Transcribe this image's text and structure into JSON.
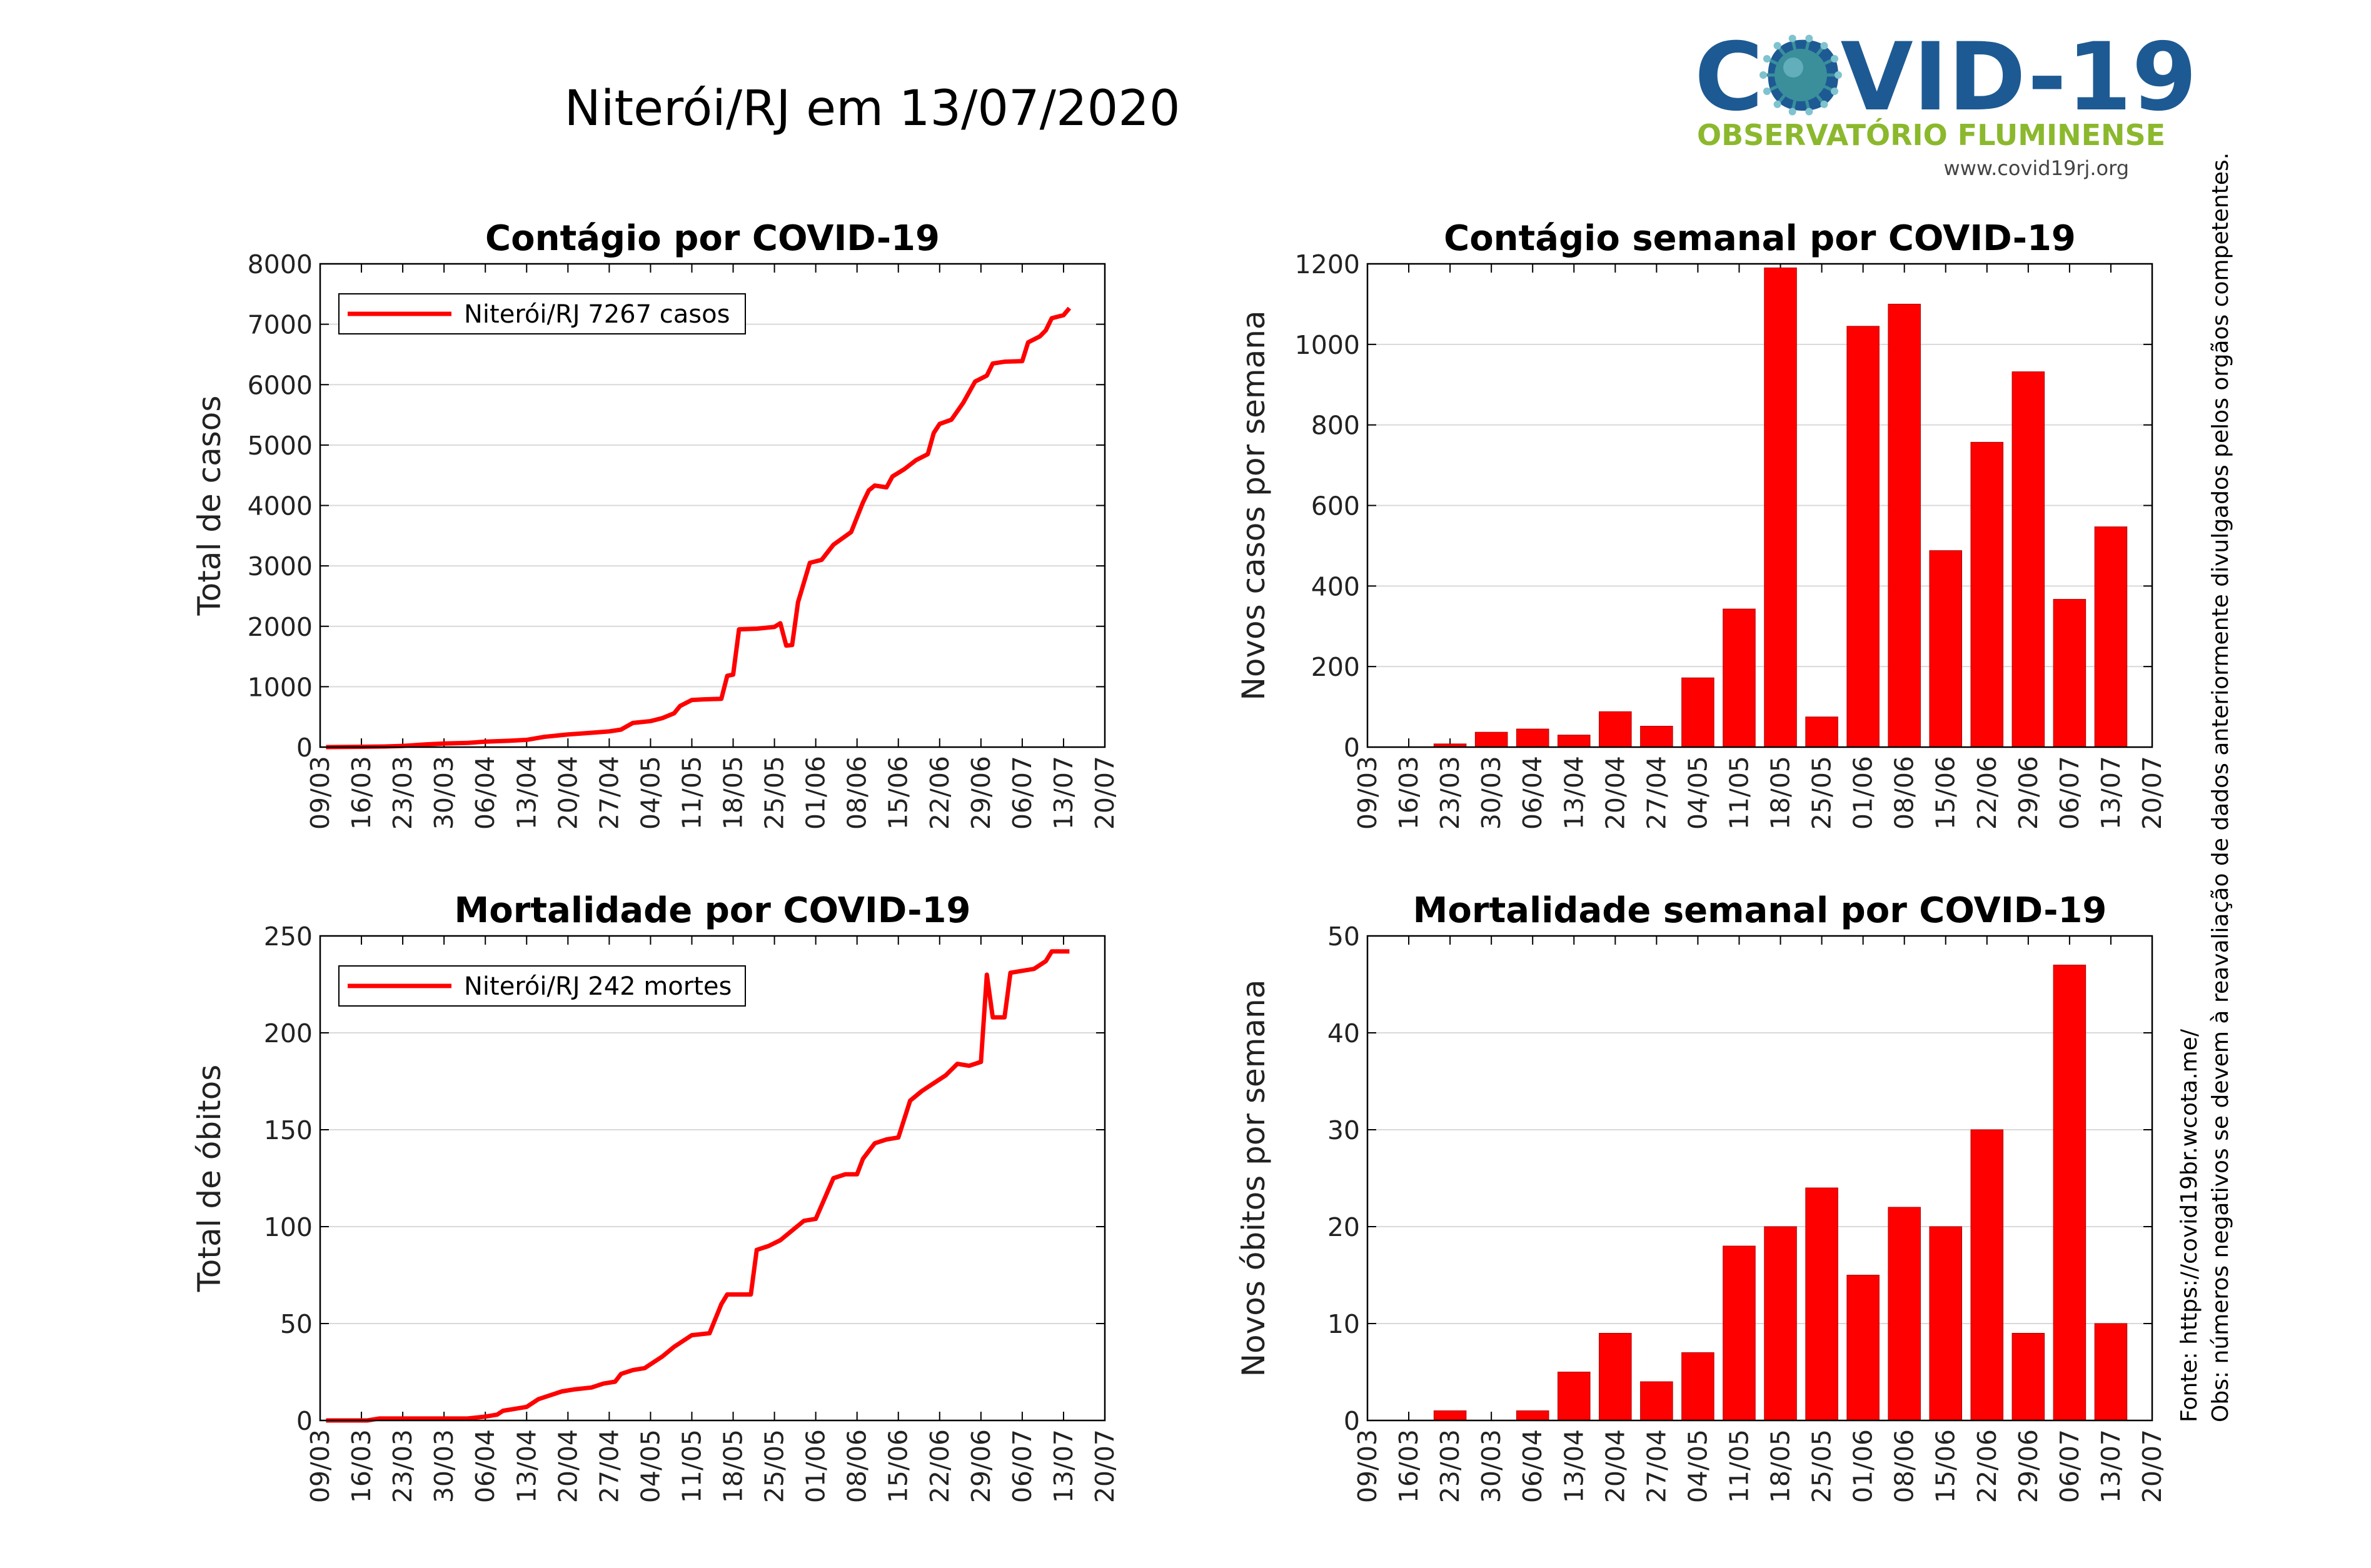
{
  "page": {
    "title": "Niterói/RJ em 13/07/2020",
    "logo": {
      "main_text": "COVID-19",
      "subtitle": "OBSERVATÓRIO FLUMINENSE",
      "url": "www.covid19rj.org",
      "colors": {
        "main": "#1d5a93",
        "subtitle": "#8bb82d",
        "virus": "#3a8f9b"
      }
    },
    "side_notes": [
      "Fonte: https://covid19br.wcota.me/",
      "Obs: números negativos se devem à reavaliação de dados anteriormente divulgados pelos orgãos competentes."
    ],
    "colors": {
      "series": "#ff0000",
      "grid": "#d9d9d9",
      "axes": "#000000"
    }
  },
  "chart_data": [
    {
      "id": "casos-total",
      "type": "line",
      "title": "Contágio por COVID-19",
      "ylabel": "Total de casos",
      "xlabel": "",
      "ylim": [
        0,
        8000
      ],
      "yticks": [
        0,
        1000,
        2000,
        3000,
        4000,
        5000,
        6000,
        7000,
        8000
      ],
      "x_tick_labels": [
        "09/03",
        "16/03",
        "23/03",
        "30/03",
        "06/04",
        "13/04",
        "20/04",
        "27/04",
        "04/05",
        "11/05",
        "18/05",
        "25/05",
        "01/06",
        "08/06",
        "15/06",
        "22/06",
        "29/06",
        "06/07",
        "13/07",
        "20/07"
      ],
      "grid": true,
      "legend": {
        "location": "top-left",
        "label": "Niterói/RJ  7267 casos"
      },
      "series": [
        {
          "name": "Niterói/RJ  7267 casos",
          "points": [
            [
              "10/03",
              0
            ],
            [
              "16/03",
              5
            ],
            [
              "20/03",
              10
            ],
            [
              "23/03",
              20
            ],
            [
              "27/03",
              45
            ],
            [
              "30/03",
              60
            ],
            [
              "03/04",
              70
            ],
            [
              "06/04",
              90
            ],
            [
              "10/04",
              105
            ],
            [
              "13/04",
              120
            ],
            [
              "16/04",
              170
            ],
            [
              "20/04",
              210
            ],
            [
              "23/04",
              230
            ],
            [
              "27/04",
              260
            ],
            [
              "29/04",
              290
            ],
            [
              "01/05",
              400
            ],
            [
              "04/05",
              430
            ],
            [
              "06/05",
              480
            ],
            [
              "08/05",
              560
            ],
            [
              "09/05",
              680
            ],
            [
              "11/05",
              780
            ],
            [
              "13/05",
              790
            ],
            [
              "16/05",
              800
            ],
            [
              "17/05",
              1180
            ],
            [
              "18/05",
              1200
            ],
            [
              "19/05",
              1950
            ],
            [
              "22/05",
              1960
            ],
            [
              "25/05",
              1990
            ],
            [
              "26/05",
              2050
            ],
            [
              "27/05",
              1680
            ],
            [
              "28/05",
              1690
            ],
            [
              "29/05",
              2400
            ],
            [
              "31/05",
              3050
            ],
            [
              "02/06",
              3100
            ],
            [
              "04/06",
              3350
            ],
            [
              "07/06",
              3560
            ],
            [
              "09/06",
              4050
            ],
            [
              "10/06",
              4250
            ],
            [
              "11/06",
              4330
            ],
            [
              "13/06",
              4300
            ],
            [
              "14/06",
              4480
            ],
            [
              "16/06",
              4600
            ],
            [
              "18/06",
              4750
            ],
            [
              "20/06",
              4850
            ],
            [
              "21/06",
              5200
            ],
            [
              "22/06",
              5350
            ],
            [
              "24/06",
              5420
            ],
            [
              "26/06",
              5700
            ],
            [
              "28/06",
              6050
            ],
            [
              "30/06",
              6150
            ],
            [
              "01/07",
              6350
            ],
            [
              "03/07",
              6380
            ],
            [
              "06/07",
              6390
            ],
            [
              "07/07",
              6700
            ],
            [
              "09/07",
              6800
            ],
            [
              "10/07",
              6900
            ],
            [
              "11/07",
              7100
            ],
            [
              "13/07",
              7150
            ],
            [
              "14/07",
              7267
            ]
          ]
        }
      ]
    },
    {
      "id": "casos-semanal",
      "type": "bar",
      "title": "Contágio semanal por COVID-19",
      "ylabel": "Novos casos por semana",
      "xlabel": "",
      "ylim": [
        0,
        1200
      ],
      "yticks": [
        0,
        200,
        400,
        600,
        800,
        1000,
        1200
      ],
      "categories": [
        "09/03",
        "16/03",
        "23/03",
        "30/03",
        "06/04",
        "13/04",
        "20/04",
        "27/04",
        "04/05",
        "11/05",
        "18/05",
        "25/05",
        "01/06",
        "08/06",
        "15/06",
        "22/06",
        "29/06",
        "06/07",
        "13/07",
        "20/07"
      ],
      "grid": true,
      "series": [
        {
          "values": [
            0,
            0,
            8,
            37,
            45,
            30,
            88,
            52,
            172,
            343,
            1190,
            75,
            1045,
            1100,
            488,
            757,
            932,
            367,
            547,
            null
          ]
        }
      ]
    },
    {
      "id": "obitos-total",
      "type": "line",
      "title": "Mortalidade por COVID-19",
      "ylabel": "Total de óbitos",
      "xlabel": "",
      "ylim": [
        0,
        250
      ],
      "yticks": [
        0,
        50,
        100,
        150,
        200,
        250
      ],
      "x_tick_labels": [
        "09/03",
        "16/03",
        "23/03",
        "30/03",
        "06/04",
        "13/04",
        "20/04",
        "27/04",
        "04/05",
        "11/05",
        "18/05",
        "25/05",
        "01/06",
        "08/06",
        "15/06",
        "22/06",
        "29/06",
        "06/07",
        "13/07",
        "20/07"
      ],
      "grid": true,
      "legend": {
        "location": "top-left",
        "label": "Niterói/RJ  242 mortes"
      },
      "series": [
        {
          "name": "Niterói/RJ  242 mortes",
          "points": [
            [
              "10/03",
              0
            ],
            [
              "17/03",
              0
            ],
            [
              "19/03",
              1
            ],
            [
              "03/04",
              1
            ],
            [
              "06/04",
              2
            ],
            [
              "08/04",
              3
            ],
            [
              "09/04",
              5
            ],
            [
              "11/04",
              6
            ],
            [
              "13/04",
              7
            ],
            [
              "15/04",
              11
            ],
            [
              "17/04",
              13
            ],
            [
              "19/04",
              15
            ],
            [
              "21/04",
              16
            ],
            [
              "24/04",
              17
            ],
            [
              "26/04",
              19
            ],
            [
              "28/04",
              20
            ],
            [
              "29/04",
              24
            ],
            [
              "01/05",
              26
            ],
            [
              "03/05",
              27
            ],
            [
              "06/05",
              33
            ],
            [
              "08/05",
              38
            ],
            [
              "09/05",
              40
            ],
            [
              "11/05",
              44
            ],
            [
              "14/05",
              45
            ],
            [
              "16/05",
              60
            ],
            [
              "17/05",
              65
            ],
            [
              "21/05",
              65
            ],
            [
              "22/05",
              88
            ],
            [
              "24/05",
              90
            ],
            [
              "26/05",
              93
            ],
            [
              "28/05",
              98
            ],
            [
              "30/05",
              103
            ],
            [
              "01/06",
              104
            ],
            [
              "03/06",
              118
            ],
            [
              "04/06",
              125
            ],
            [
              "06/06",
              127
            ],
            [
              "08/06",
              127
            ],
            [
              "09/06",
              135
            ],
            [
              "11/06",
              143
            ],
            [
              "13/06",
              145
            ],
            [
              "15/06",
              146
            ],
            [
              "17/06",
              165
            ],
            [
              "19/06",
              170
            ],
            [
              "21/06",
              174
            ],
            [
              "23/06",
              178
            ],
            [
              "25/06",
              184
            ],
            [
              "27/06",
              183
            ],
            [
              "29/06",
              185
            ],
            [
              "30/06",
              230
            ],
            [
              "01/07",
              208
            ],
            [
              "03/07",
              208
            ],
            [
              "04/07",
              231
            ],
            [
              "08/07",
              233
            ],
            [
              "10/07",
              237
            ],
            [
              "11/07",
              242
            ],
            [
              "14/07",
              242
            ]
          ]
        }
      ]
    },
    {
      "id": "obitos-semanal",
      "type": "bar",
      "title": "Mortalidade semanal por COVID-19",
      "ylabel": "Novos óbitos por semana",
      "xlabel": "",
      "ylim": [
        0,
        50
      ],
      "yticks": [
        0,
        10,
        20,
        30,
        40,
        50
      ],
      "categories": [
        "09/03",
        "16/03",
        "23/03",
        "30/03",
        "06/04",
        "13/04",
        "20/04",
        "27/04",
        "04/05",
        "11/05",
        "18/05",
        "25/05",
        "01/06",
        "08/06",
        "15/06",
        "22/06",
        "29/06",
        "06/07",
        "13/07",
        "20/07"
      ],
      "grid": true,
      "series": [
        {
          "values": [
            0,
            0,
            1,
            0,
            1,
            5,
            9,
            4,
            7,
            18,
            20,
            24,
            15,
            22,
            20,
            30,
            9,
            47,
            10,
            null
          ]
        }
      ]
    }
  ]
}
